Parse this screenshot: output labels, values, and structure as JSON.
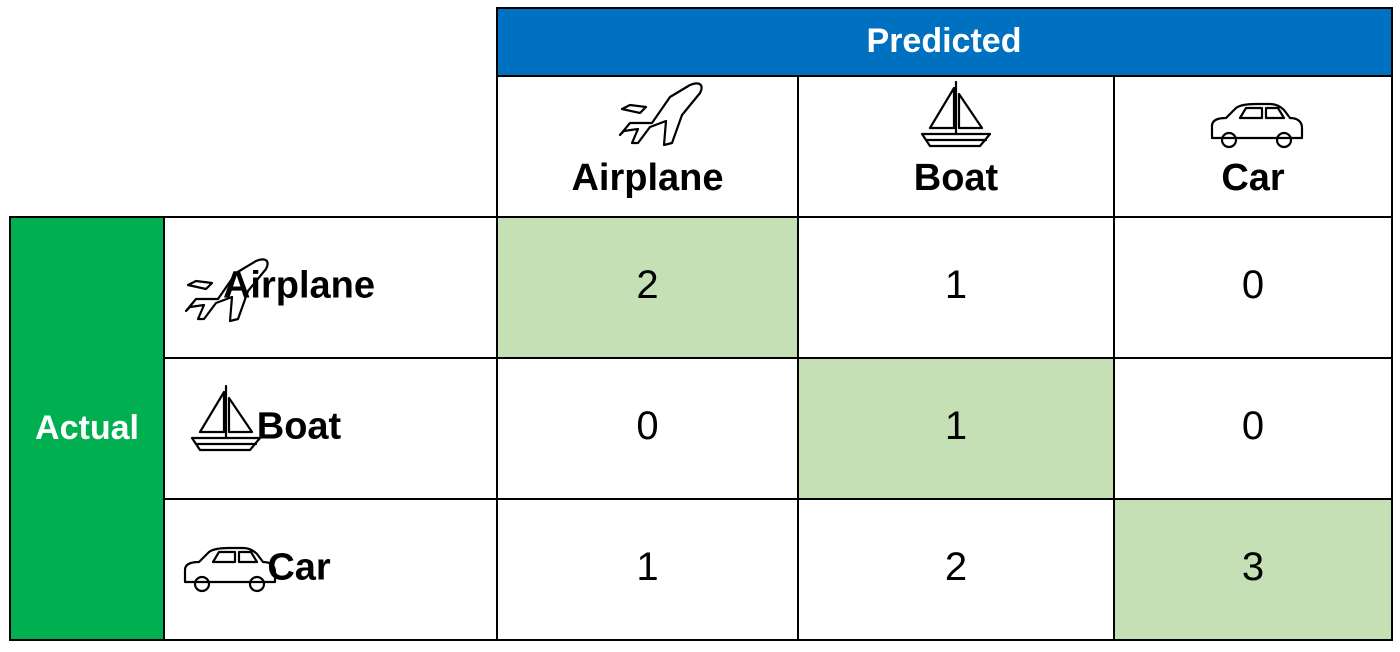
{
  "header": {
    "title": "Predicted"
  },
  "side": {
    "title": "Actual"
  },
  "columns": [
    "Airplane",
    "Boat",
    "Car"
  ],
  "rows": [
    {
      "label": "Airplane",
      "cells": [
        2,
        1,
        0
      ]
    },
    {
      "label": "Boat",
      "cells": [
        0,
        1,
        0
      ]
    },
    {
      "label": "Car",
      "cells": [
        1,
        2,
        3
      ]
    }
  ]
}
